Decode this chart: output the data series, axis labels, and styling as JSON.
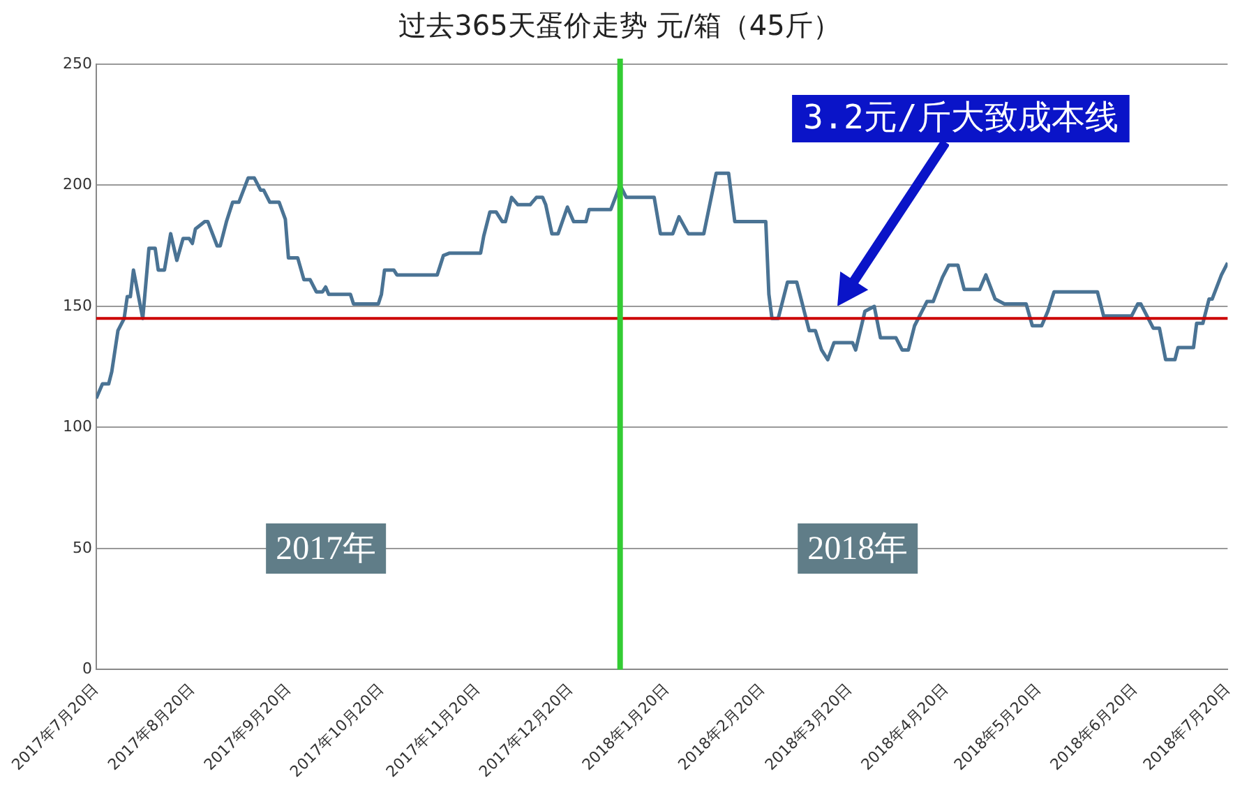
{
  "chart_data": {
    "type": "line",
    "title": "过去365天蛋价走势 元/箱（45斤）",
    "x": [
      "2017-07-20",
      "2017-07-22",
      "2017-07-24",
      "2017-07-25",
      "2017-07-27",
      "2017-07-29",
      "2017-07-30",
      "2017-07-31",
      "2017-08-01",
      "2017-08-04",
      "2017-08-06",
      "2017-08-08",
      "2017-08-09",
      "2017-08-11",
      "2017-08-13",
      "2017-08-15",
      "2017-08-17",
      "2017-08-19",
      "2017-08-20",
      "2017-08-21",
      "2017-08-24",
      "2017-08-25",
      "2017-08-28",
      "2017-08-29",
      "2017-08-31",
      "2017-09-02",
      "2017-09-04",
      "2017-09-07",
      "2017-09-09",
      "2017-09-11",
      "2017-09-12",
      "2017-09-14",
      "2017-09-17",
      "2017-09-19",
      "2017-09-20",
      "2017-09-23",
      "2017-09-25",
      "2017-09-27",
      "2017-09-29",
      "2017-10-01",
      "2017-10-02",
      "2017-10-03",
      "2017-10-10",
      "2017-10-11",
      "2017-10-19",
      "2017-10-20",
      "2017-10-21",
      "2017-10-24",
      "2017-10-25",
      "2017-11-07",
      "2017-11-09",
      "2017-11-11",
      "2017-11-21",
      "2017-11-22",
      "2017-11-24",
      "2017-11-26",
      "2017-11-28",
      "2017-11-29",
      "2017-12-01",
      "2017-12-03",
      "2017-12-07",
      "2017-12-09",
      "2017-12-11",
      "2017-12-12",
      "2017-12-14",
      "2017-12-16",
      "2017-12-19",
      "2017-12-21",
      "2017-12-25",
      "2017-12-26",
      "2018-01-02",
      "2018-01-05",
      "2018-01-07",
      "2018-01-16",
      "2018-01-18",
      "2018-01-22",
      "2018-01-24",
      "2018-01-27",
      "2018-02-01",
      "2018-02-05",
      "2018-02-09",
      "2018-02-11",
      "2018-02-21",
      "2018-02-22",
      "2018-02-23",
      "2018-02-25",
      "2018-02-28",
      "2018-03-03",
      "2018-03-06",
      "2018-03-07",
      "2018-03-09",
      "2018-03-11",
      "2018-03-13",
      "2018-03-15",
      "2018-03-21",
      "2018-03-22",
      "2018-03-25",
      "2018-03-28",
      "2018-03-30",
      "2018-04-04",
      "2018-04-06",
      "2018-04-08",
      "2018-04-10",
      "2018-04-12",
      "2018-04-14",
      "2018-04-16",
      "2018-04-19",
      "2018-04-21",
      "2018-04-24",
      "2018-04-26",
      "2018-05-01",
      "2018-05-03",
      "2018-05-06",
      "2018-05-09",
      "2018-05-16",
      "2018-05-18",
      "2018-05-21",
      "2018-05-23",
      "2018-05-25",
      "2018-06-08",
      "2018-06-10",
      "2018-06-19",
      "2018-06-21",
      "2018-06-22",
      "2018-06-24",
      "2018-06-26",
      "2018-06-28",
      "2018-06-30",
      "2018-07-03",
      "2018-07-04",
      "2018-07-09",
      "2018-07-10",
      "2018-07-12",
      "2018-07-14",
      "2018-07-15",
      "2018-07-18",
      "2018-07-20"
    ],
    "series": [
      {
        "color": "#4a7394",
        "values": [
          112,
          118,
          118,
          123,
          140,
          145,
          154,
          154,
          165,
          145,
          174,
          174,
          165,
          165,
          180,
          169,
          178,
          178,
          176,
          182,
          185,
          185,
          175,
          175,
          185,
          193,
          193,
          203,
          203,
          198,
          198,
          193,
          193,
          186,
          170,
          170,
          161,
          161,
          156,
          156,
          158,
          155,
          155,
          151,
          151,
          155,
          165,
          165,
          163,
          163,
          171,
          172,
          172,
          179,
          189,
          189,
          185,
          185,
          195,
          192,
          192,
          195,
          195,
          192,
          180,
          180,
          191,
          185,
          185,
          190,
          190,
          200,
          195,
          195,
          180,
          180,
          187,
          180,
          180,
          205,
          205,
          185,
          185,
          155,
          145,
          145,
          160,
          160,
          145,
          140,
          140,
          132,
          128,
          135,
          135,
          132,
          148,
          150,
          137,
          137,
          132,
          132,
          142,
          147,
          152,
          152,
          162,
          167,
          167,
          157,
          157,
          163,
          153,
          151,
          151,
          142,
          142,
          148,
          156,
          156,
          146,
          146,
          151,
          151,
          146,
          141,
          141,
          128,
          128,
          133,
          133,
          143,
          143,
          153,
          153,
          163,
          168
        ]
      }
    ],
    "xlim": [
      "2017-07-20",
      "2018-07-20"
    ],
    "xticks": [
      {
        "value": "2017-07-20",
        "label": "2017年7月20日"
      },
      {
        "value": "2017-08-20",
        "label": "2017年8月20日"
      },
      {
        "value": "2017-09-20",
        "label": "2017年9月20日"
      },
      {
        "value": "2017-10-20",
        "label": "2017年10月20日"
      },
      {
        "value": "2017-11-20",
        "label": "2017年11月20日"
      },
      {
        "value": "2017-12-20",
        "label": "2017年12月20日"
      },
      {
        "value": "2018-01-20",
        "label": "2018年1月20日"
      },
      {
        "value": "2018-02-20",
        "label": "2018年2月20日"
      },
      {
        "value": "2018-03-20",
        "label": "2018年3月20日"
      },
      {
        "value": "2018-04-20",
        "label": "2018年4月20日"
      },
      {
        "value": "2018-05-20",
        "label": "2018年5月20日"
      },
      {
        "value": "2018-06-20",
        "label": "2018年6月20日"
      },
      {
        "value": "2018-07-20",
        "label": "2018年7月20日"
      }
    ],
    "ylim": [
      0,
      250
    ],
    "yticks": [
      0,
      50,
      100,
      150,
      200,
      250
    ],
    "grid": "y",
    "legend": false,
    "marker": "none",
    "line_style": "solid",
    "ref_lines": [
      {
        "axis": "y",
        "value": 145,
        "color": "#cc0000"
      },
      {
        "axis": "x",
        "value": "2018-01-05",
        "color": "#33cc33"
      }
    ],
    "annotations": [
      "3.2元/斤大致成本线",
      "2017年",
      "2018年"
    ]
  }
}
